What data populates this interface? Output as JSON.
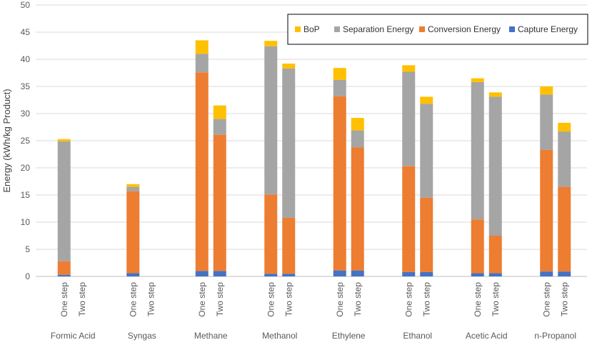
{
  "chart_data": {
    "type": "bar",
    "stacked": true,
    "title": "",
    "xlabel": "",
    "ylabel": "Energy (kWh/kg Product)",
    "ylim": [
      0,
      50
    ],
    "yticks": [
      0,
      5,
      10,
      15,
      20,
      25,
      30,
      35,
      40,
      45,
      50
    ],
    "grid": true,
    "legend_position": "top-right",
    "colors": {
      "capture": "#4472C4",
      "conversion": "#ED7D31",
      "separation": "#A5A5A5",
      "bop": "#FFC000",
      "grid": "#d9d9d9",
      "axis": "#bfbfbf"
    },
    "groups": [
      "Formic Acid",
      "Syngas",
      "Methane",
      "Methanol",
      "Ethylene",
      "Ethanol",
      "Acetic Acid",
      "n-Propanol"
    ],
    "sub_categories": [
      "One step",
      "Two step"
    ],
    "series": [
      {
        "key": "capture",
        "name": "Capture Energy",
        "values": [
          [
            0.3,
            0
          ],
          [
            0.6,
            0
          ],
          [
            1.0,
            1.0
          ],
          [
            0.5,
            0.5
          ],
          [
            1.1,
            1.1
          ],
          [
            0.8,
            0.8
          ],
          [
            0.6,
            0.6
          ],
          [
            0.9,
            0.9
          ]
        ]
      },
      {
        "key": "conversion",
        "name": "Conversion Energy",
        "values": [
          [
            2.5,
            0
          ],
          [
            15.1,
            0
          ],
          [
            36.6,
            25.1
          ],
          [
            14.6,
            10.3
          ],
          [
            32.1,
            22.7
          ],
          [
            19.5,
            13.7
          ],
          [
            9.9,
            6.9
          ],
          [
            22.4,
            15.6
          ]
        ]
      },
      {
        "key": "separation",
        "name": "Separation Energy",
        "values": [
          [
            22.1,
            0
          ],
          [
            0.8,
            0
          ],
          [
            3.4,
            2.9
          ],
          [
            27.3,
            27.5
          ],
          [
            3.0,
            3.1
          ],
          [
            17.4,
            17.3
          ],
          [
            25.3,
            25.6
          ],
          [
            10.2,
            10.2
          ]
        ]
      },
      {
        "key": "bop",
        "name": "BoP",
        "values": [
          [
            0.4,
            0
          ],
          [
            0.5,
            0
          ],
          [
            2.5,
            2.5
          ],
          [
            1.0,
            0.9
          ],
          [
            2.2,
            2.3
          ],
          [
            1.2,
            1.3
          ],
          [
            0.7,
            0.8
          ],
          [
            1.5,
            1.6
          ]
        ]
      }
    ],
    "legend_order": [
      "bop",
      "separation",
      "conversion",
      "capture"
    ]
  }
}
